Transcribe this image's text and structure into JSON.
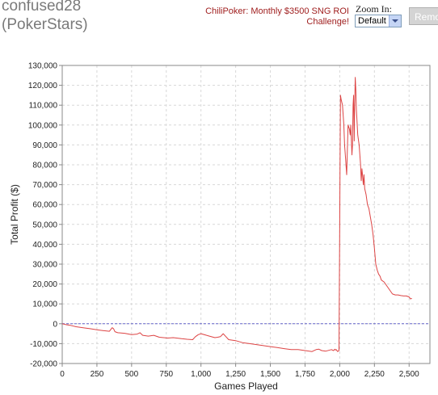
{
  "header": {
    "player_name": "confused28",
    "player_site": "(PokerStars)",
    "promo_link": "ChiliPoker: Monthly $3500 SNG ROI Challenge!",
    "zoom_label": "Zoom In:",
    "zoom_value": "Default",
    "remove_label": "Remove"
  },
  "chart_data": {
    "type": "line",
    "xlabel": "Games Played",
    "ylabel": "Total Profit ($)",
    "xlim": [
      0,
      2650
    ],
    "ylim": [
      -20000,
      130000
    ],
    "xticks": [
      0,
      250,
      500,
      750,
      1000,
      1250,
      1500,
      1750,
      2000,
      2250,
      2500
    ],
    "yticks": [
      -20000,
      -10000,
      0,
      10000,
      20000,
      30000,
      40000,
      50000,
      60000,
      70000,
      80000,
      90000,
      100000,
      110000,
      120000,
      130000
    ],
    "xtick_labels": [
      "0",
      "250",
      "500",
      "750",
      "1,000",
      "1,250",
      "1,500",
      "1,750",
      "2,000",
      "2,250",
      "2,500"
    ],
    "ytick_labels": [
      "-20,000",
      "-10,000",
      "0",
      "10,000",
      "20,000",
      "30,000",
      "40,000",
      "50,000",
      "60,000",
      "70,000",
      "80,000",
      "90,000",
      "100,000",
      "110,000",
      "120,000",
      "130,000"
    ],
    "grid": true,
    "zero_line": true,
    "colors": {
      "line": "#dd4444",
      "zero_line": "#6666cc",
      "grid": "#d8d8d8"
    },
    "series": [
      {
        "x": [
          0,
          30,
          60,
          100,
          150,
          200,
          250,
          300,
          340,
          360,
          370,
          380,
          400,
          450,
          500,
          540,
          560,
          580,
          620,
          660,
          700,
          760,
          800,
          860,
          900,
          940,
          960,
          980,
          1000,
          1050,
          1100,
          1120,
          1140,
          1160,
          1180,
          1200,
          1250,
          1300,
          1350,
          1400,
          1450,
          1500,
          1550,
          1600,
          1650,
          1700,
          1750,
          1800,
          1830,
          1850,
          1870,
          1900,
          1940,
          1955,
          1965,
          1970,
          1975,
          1985,
          1995,
          2005,
          2010,
          2020,
          2030,
          2035,
          2040,
          2050,
          2060,
          2070,
          2075,
          2080,
          2088,
          2092,
          2096,
          2100,
          2104,
          2108,
          2112,
          2116,
          2120,
          2130,
          2140,
          2150,
          2155,
          2160,
          2170,
          2175,
          2180,
          2190,
          2200,
          2210,
          2220,
          2230,
          2240,
          2250,
          2260,
          2270,
          2280,
          2290,
          2300,
          2320,
          2340,
          2360,
          2380,
          2400,
          2420,
          2440,
          2460,
          2480,
          2500,
          2510,
          2520
        ],
        "values": [
          0,
          -500,
          -800,
          -1500,
          -2000,
          -2500,
          -3000,
          -3500,
          -3800,
          -2000,
          -2500,
          -4000,
          -4500,
          -4800,
          -5500,
          -5200,
          -4500,
          -5800,
          -6200,
          -5800,
          -6800,
          -7200,
          -7000,
          -7500,
          -7800,
          -8000,
          -6500,
          -5500,
          -5000,
          -6000,
          -7000,
          -6800,
          -6500,
          -5000,
          -6500,
          -8000,
          -8500,
          -9500,
          -10000,
          -10500,
          -11000,
          -11500,
          -12000,
          -12500,
          -13000,
          -13000,
          -13500,
          -14000,
          -13000,
          -12800,
          -13500,
          -13800,
          -13000,
          -13500,
          -12800,
          -13200,
          -13000,
          -14000,
          -13500,
          115000,
          113000,
          110000,
          100000,
          90000,
          85000,
          75000,
          100000,
          98000,
          95000,
          100000,
          85000,
          90000,
          110000,
          115000,
          92000,
          110000,
          124000,
          118000,
          108000,
          95000,
          90000,
          80000,
          72000,
          78000,
          70000,
          75000,
          68000,
          65000,
          60000,
          58000,
          54000,
          50000,
          45000,
          38000,
          30000,
          27000,
          25000,
          24000,
          22000,
          21000,
          19000,
          17000,
          15000,
          14500,
          14500,
          14200,
          14000,
          14000,
          13500,
          12500,
          12800
        ]
      }
    ]
  }
}
